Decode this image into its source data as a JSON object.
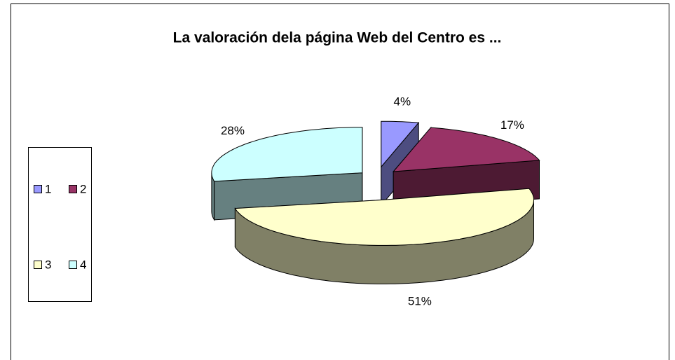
{
  "chart_data": {
    "type": "pie3d",
    "title": "La valoración dela página Web del Centro es ...",
    "categories": [
      "1",
      "2",
      "3",
      "4"
    ],
    "values": [
      4,
      17,
      51,
      28
    ],
    "value_labels": [
      "4%",
      "17%",
      "51%",
      "28%"
    ],
    "colors": [
      "#9999ff",
      "#993366",
      "#ffffcc",
      "#ccffff"
    ],
    "legend": "left"
  }
}
